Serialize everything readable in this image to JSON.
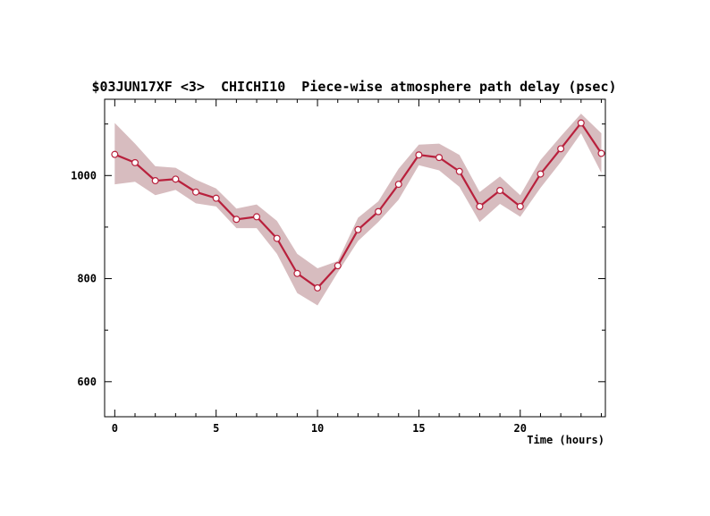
{
  "chart_data": {
    "type": "line",
    "title": "$03JUN17XF <3>  CHICHI10  Piece-wise atmosphere path delay (psec)",
    "xlabel": "Time (hours)",
    "ylabel": "",
    "xlim": [
      -0.5,
      24.2
    ],
    "ylim": [
      532,
      1148
    ],
    "x_ticks": [
      0,
      5,
      10,
      15,
      20
    ],
    "y_ticks": [
      600,
      800,
      1000
    ],
    "grid": false,
    "legend": "none",
    "colors": {
      "line": "#b8203c",
      "band": "#d7bcbf",
      "marker_fill": "#ffffff"
    },
    "series": [
      {
        "x": [
          0,
          1,
          2,
          3,
          4,
          5,
          6,
          7,
          8,
          9,
          10,
          11,
          12,
          13,
          14,
          15,
          16,
          17,
          18,
          19,
          20,
          21,
          22,
          23,
          24
        ],
        "values": [
          1041,
          1025,
          990,
          993,
          968,
          956,
          915,
          920,
          878,
          810,
          782,
          825,
          895,
          930,
          983,
          1040,
          1035,
          1008,
          940,
          971,
          940,
          1003,
          1052,
          1102,
          1043
        ],
        "upper": [
          1102,
          1062,
          1018,
          1015,
          992,
          975,
          936,
          944,
          912,
          848,
          820,
          834,
          918,
          950,
          1013,
          1060,
          1062,
          1040,
          968,
          998,
          962,
          1030,
          1076,
          1120,
          1082
        ],
        "lower": [
          983,
          988,
          962,
          972,
          946,
          940,
          898,
          898,
          848,
          772,
          748,
          812,
          873,
          910,
          953,
          1020,
          1010,
          978,
          910,
          945,
          920,
          976,
          1026,
          1082,
          1005
        ]
      }
    ]
  }
}
